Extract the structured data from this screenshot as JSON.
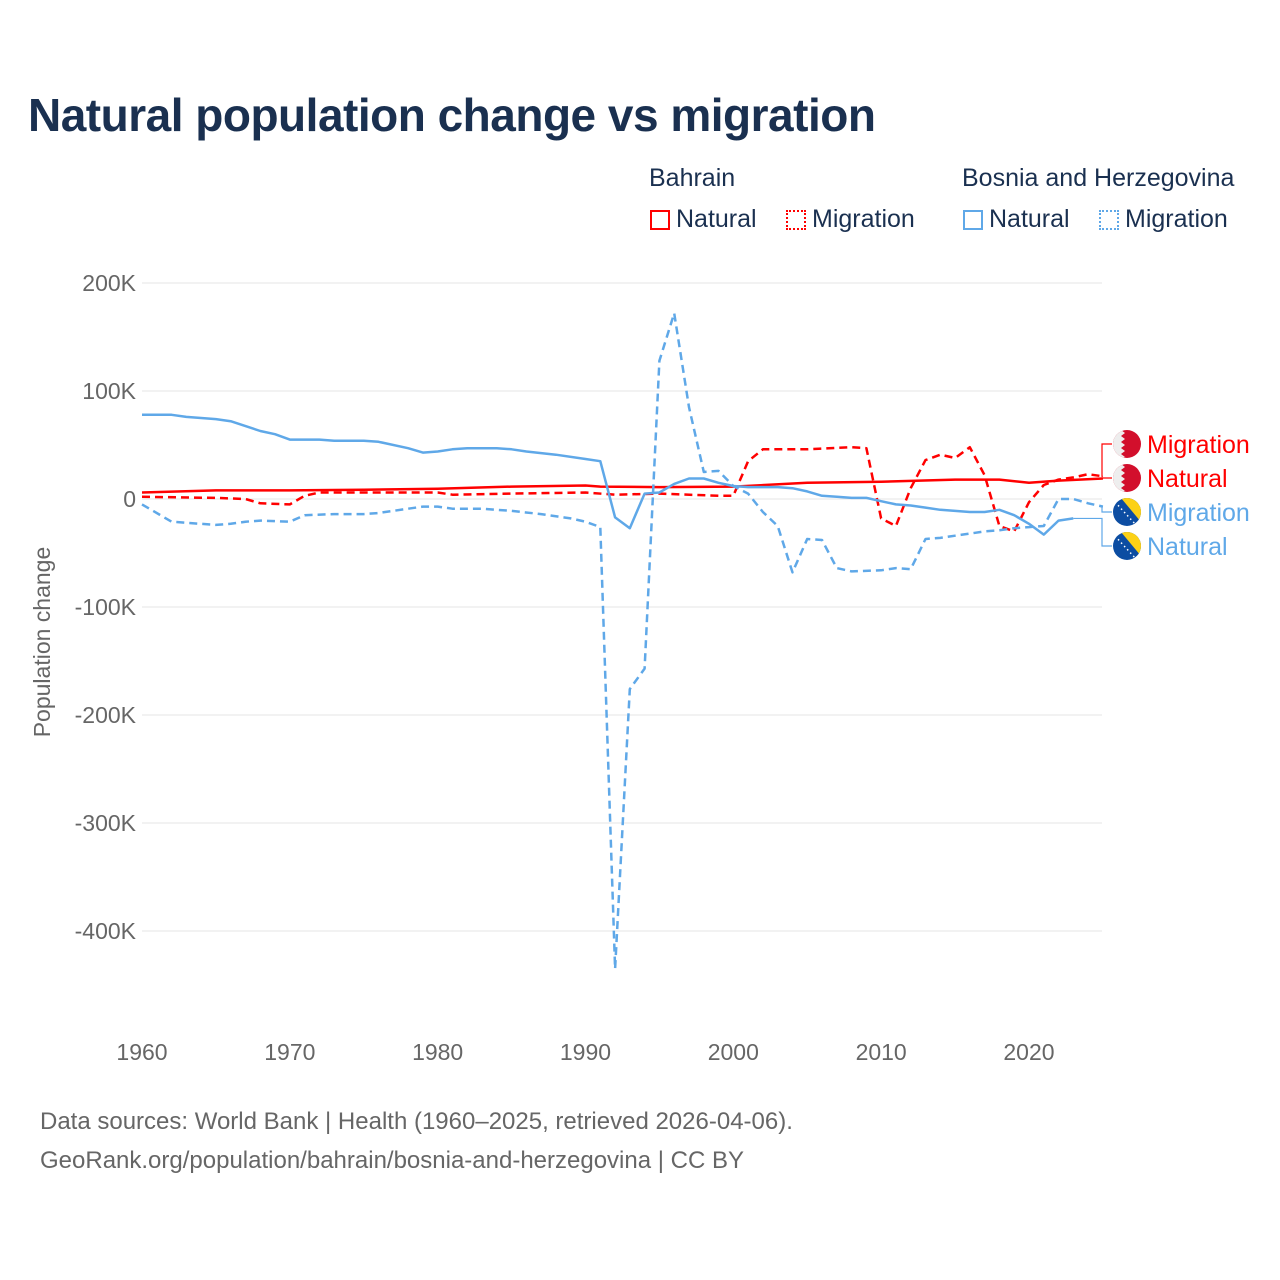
{
  "title": "Natural population change vs migration",
  "legend": {
    "groups": [
      {
        "name": "Bahrain",
        "color": "#ff0000",
        "items": [
          "Natural",
          "Migration"
        ]
      },
      {
        "name": "Bosnia and Herzegovina",
        "color": "#5fa8e8",
        "items": [
          "Natural",
          "Migration"
        ]
      }
    ]
  },
  "footer": {
    "line1": "Data sources: World Bank | Health (1960–2025, retrieved 2026-04-06).",
    "line2": "GeoRank.org/population/bahrain/bosnia-and-herzegovina | CC BY"
  },
  "chart_data": {
    "type": "line",
    "title": "Natural population change vs migration",
    "xlabel": "",
    "ylabel": "Population change",
    "xlim": [
      1960,
      2025
    ],
    "ylim": [
      -450000,
      200000
    ],
    "x_ticks": [
      1960,
      1970,
      1980,
      1990,
      2000,
      2010,
      2020
    ],
    "x_tick_labels": [
      "1960",
      "1970",
      "1980",
      "1990",
      "2000",
      "2010",
      "2020"
    ],
    "y_ticks": [
      200000,
      100000,
      0,
      -100000,
      -200000,
      -300000,
      -400000
    ],
    "y_tick_labels": [
      "200K",
      "100K",
      "0",
      "-100K",
      "-200K",
      "-300K",
      "-400K"
    ],
    "grid": true,
    "legend_position": "top-right",
    "series": [
      {
        "name": "Bahrain Natural",
        "end_label": "Natural",
        "country": "Bahrain",
        "color": "#ff0000",
        "dash": false,
        "points": [
          [
            1960,
            6000
          ],
          [
            1965,
            8000
          ],
          [
            1970,
            8000
          ],
          [
            1975,
            8500
          ],
          [
            1980,
            9500
          ],
          [
            1985,
            11500
          ],
          [
            1990,
            12500
          ],
          [
            1991,
            11500
          ],
          [
            1995,
            11000
          ],
          [
            2000,
            11500
          ],
          [
            2005,
            15000
          ],
          [
            2010,
            16000
          ],
          [
            2015,
            18000
          ],
          [
            2018,
            18000
          ],
          [
            2020,
            15000
          ],
          [
            2022,
            17000
          ],
          [
            2025,
            19000
          ]
        ]
      },
      {
        "name": "Bahrain Migration",
        "end_label": "Migration",
        "country": "Bahrain",
        "color": "#ff0000",
        "dash": true,
        "points": [
          [
            1960,
            2000
          ],
          [
            1965,
            1000
          ],
          [
            1967,
            0
          ],
          [
            1968,
            -4000
          ],
          [
            1970,
            -5000
          ],
          [
            1971,
            3000
          ],
          [
            1972,
            6000
          ],
          [
            1980,
            6000
          ],
          [
            1981,
            4000
          ],
          [
            1985,
            5000
          ],
          [
            1990,
            6000
          ],
          [
            1992,
            4000
          ],
          [
            1995,
            5000
          ],
          [
            1999,
            3000
          ],
          [
            2000,
            3000
          ],
          [
            2001,
            35000
          ],
          [
            2002,
            46000
          ],
          [
            2005,
            46000
          ],
          [
            2008,
            48000
          ],
          [
            2009,
            47000
          ],
          [
            2010,
            -18000
          ],
          [
            2011,
            -25000
          ],
          [
            2012,
            10000
          ],
          [
            2013,
            36000
          ],
          [
            2014,
            41000
          ],
          [
            2015,
            38000
          ],
          [
            2016,
            48000
          ],
          [
            2017,
            22000
          ],
          [
            2018,
            -25000
          ],
          [
            2019,
            -30000
          ],
          [
            2020,
            -3000
          ],
          [
            2021,
            13000
          ],
          [
            2022,
            18000
          ],
          [
            2023,
            20000
          ],
          [
            2024,
            23000
          ],
          [
            2025,
            21000
          ]
        ]
      },
      {
        "name": "Bosnia and Herzegovina Natural",
        "end_label": "Natural",
        "country": "Bosnia and Herzegovina",
        "color": "#5fa8e8",
        "dash": false,
        "points": [
          [
            1960,
            78000
          ],
          [
            1962,
            78000
          ],
          [
            1963,
            76000
          ],
          [
            1965,
            74000
          ],
          [
            1966,
            72000
          ],
          [
            1968,
            63000
          ],
          [
            1969,
            60000
          ],
          [
            1970,
            55000
          ],
          [
            1972,
            55000
          ],
          [
            1973,
            54000
          ],
          [
            1975,
            54000
          ],
          [
            1976,
            53000
          ],
          [
            1978,
            47000
          ],
          [
            1979,
            43000
          ],
          [
            1980,
            44000
          ],
          [
            1981,
            46000
          ],
          [
            1982,
            47000
          ],
          [
            1984,
            47000
          ],
          [
            1985,
            46000
          ],
          [
            1986,
            44000
          ],
          [
            1988,
            41000
          ],
          [
            1990,
            37000
          ],
          [
            1991,
            35000
          ],
          [
            1992,
            -17000
          ],
          [
            1993,
            -27000
          ],
          [
            1994,
            5000
          ],
          [
            1995,
            6000
          ],
          [
            1996,
            14000
          ],
          [
            1997,
            19000
          ],
          [
            1998,
            19000
          ],
          [
            1999,
            15000
          ],
          [
            2000,
            12000
          ],
          [
            2001,
            11000
          ],
          [
            2003,
            11000
          ],
          [
            2004,
            10000
          ],
          [
            2005,
            7000
          ],
          [
            2006,
            3000
          ],
          [
            2007,
            2000
          ],
          [
            2008,
            1000
          ],
          [
            2009,
            1000
          ],
          [
            2010,
            -2000
          ],
          [
            2011,
            -5000
          ],
          [
            2012,
            -6000
          ],
          [
            2013,
            -8000
          ],
          [
            2014,
            -10000
          ],
          [
            2015,
            -11000
          ],
          [
            2016,
            -12000
          ],
          [
            2017,
            -12000
          ],
          [
            2018,
            -10000
          ],
          [
            2019,
            -15000
          ],
          [
            2020,
            -23000
          ],
          [
            2021,
            -33000
          ],
          [
            2022,
            -20000
          ],
          [
            2023,
            -18000
          ]
        ]
      },
      {
        "name": "Bosnia and Herzegovina Migration",
        "end_label": "Migration",
        "country": "Bosnia and Herzegovina",
        "color": "#5fa8e8",
        "dash": true,
        "points": [
          [
            1960,
            -5000
          ],
          [
            1962,
            -21000
          ],
          [
            1963,
            -22000
          ],
          [
            1965,
            -24000
          ],
          [
            1966,
            -23000
          ],
          [
            1967,
            -21000
          ],
          [
            1968,
            -20000
          ],
          [
            1970,
            -21000
          ],
          [
            1971,
            -15000
          ],
          [
            1973,
            -14000
          ],
          [
            1975,
            -14000
          ],
          [
            1976,
            -13000
          ],
          [
            1978,
            -9000
          ],
          [
            1979,
            -7000
          ],
          [
            1980,
            -7000
          ],
          [
            1981,
            -9000
          ],
          [
            1983,
            -9000
          ],
          [
            1985,
            -11000
          ],
          [
            1987,
            -14000
          ],
          [
            1989,
            -18000
          ],
          [
            1990,
            -21000
          ],
          [
            1991,
            -26000
          ],
          [
            1992,
            -435000
          ],
          [
            1993,
            -176000
          ],
          [
            1994,
            -157000
          ],
          [
            1995,
            128000
          ],
          [
            1996,
            172000
          ],
          [
            1997,
            85000
          ],
          [
            1998,
            25000
          ],
          [
            1999,
            26000
          ],
          [
            2000,
            12000
          ],
          [
            2001,
            5000
          ],
          [
            2002,
            -12000
          ],
          [
            2003,
            -25000
          ],
          [
            2004,
            -68000
          ],
          [
            2005,
            -37000
          ],
          [
            2006,
            -38000
          ],
          [
            2007,
            -64000
          ],
          [
            2008,
            -67000
          ],
          [
            2010,
            -66000
          ],
          [
            2011,
            -64000
          ],
          [
            2012,
            -65000
          ],
          [
            2013,
            -37000
          ],
          [
            2014,
            -36000
          ],
          [
            2015,
            -34000
          ],
          [
            2016,
            -32000
          ],
          [
            2017,
            -30000
          ],
          [
            2018,
            -29000
          ],
          [
            2019,
            -27000
          ],
          [
            2020,
            -26000
          ],
          [
            2021,
            -25000
          ],
          [
            2022,
            0
          ],
          [
            2023,
            0
          ],
          [
            2024,
            -4000
          ],
          [
            2025,
            -7000
          ]
        ]
      }
    ]
  }
}
